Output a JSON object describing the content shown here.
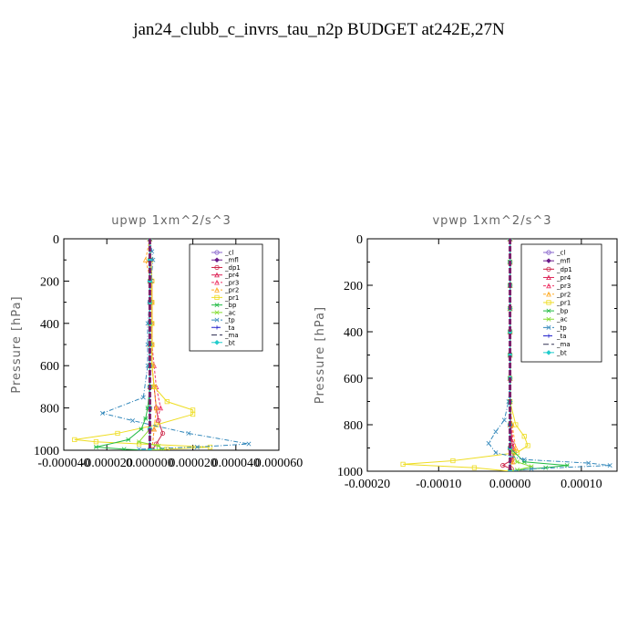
{
  "page": {
    "title": "jan24_clubb_c_invrs_tau_n2p  BUDGET at242E,27N"
  },
  "colors": {
    "_cl": "#8866cc",
    "_mfl": "#6a1a8a",
    "_dp1": "#cc2244",
    "_pr4": "#dd2255",
    "_pr3": "#ee3366",
    "_pr2": "#ffaa22",
    "_pr1": "#eedd22",
    "_bp": "#22bb44",
    "_ac": "#88dd33",
    "_tp": "#3388bb",
    "_ta": "#2222cc",
    "_ma": "#333355",
    "_bt": "#22cccc"
  },
  "chart_data": [
    {
      "type": "line",
      "title": "upwp   1xm^2/s^3",
      "xlabel": "",
      "ylabel": "Pressure [hPa]",
      "xlim": [
        -4e-05,
        6e-05
      ],
      "ylim": [
        1000,
        0
      ],
      "xticks": [
        "-0.000040",
        "-0.000020",
        "0.000000",
        "0.000020",
        "0.000040",
        "0.000060"
      ],
      "xtick_values": [
        -4e-05,
        -2e-05,
        0,
        2e-05,
        4e-05,
        6e-05
      ],
      "yticks": [
        "0",
        "200",
        "400",
        "600",
        "800",
        "1000"
      ],
      "ytick_values": [
        0,
        200,
        400,
        600,
        800,
        1000
      ],
      "legend_position": "top-right",
      "series": [
        {
          "name": "_cl",
          "x": [
            0,
            0,
            0,
            0,
            0,
            0,
            0,
            0,
            0,
            0,
            0
          ],
          "y": [
            0,
            100,
            200,
            300,
            400,
            500,
            600,
            700,
            800,
            900,
            1000
          ]
        },
        {
          "name": "_mfl",
          "x": [
            0,
            0,
            0,
            0,
            0,
            0,
            0,
            0,
            0,
            0,
            0
          ],
          "y": [
            0,
            100,
            200,
            300,
            400,
            500,
            600,
            700,
            800,
            900,
            1000
          ]
        },
        {
          "name": "_dp1",
          "x": [
            0,
            5e-07,
            1e-06,
            1e-06,
            1e-06,
            1e-06,
            1e-06,
            2e-06,
            3e-06,
            4e-06,
            6e-06,
            3e-06,
            1e-06
          ],
          "y": [
            0,
            100,
            200,
            300,
            400,
            500,
            600,
            700,
            800,
            860,
            920,
            970,
            1000
          ]
        },
        {
          "name": "_pr4",
          "x": [
            0,
            0,
            0,
            0,
            0,
            0,
            0,
            0,
            0,
            0,
            0
          ],
          "y": [
            0,
            100,
            200,
            300,
            400,
            500,
            600,
            700,
            800,
            900,
            1000
          ]
        },
        {
          "name": "_pr3",
          "x": [
            0,
            0,
            5e-07,
            1e-06,
            1e-06,
            1e-06,
            2e-06,
            3e-06,
            5e-06,
            2e-06,
            1e-06
          ],
          "y": [
            0,
            100,
            200,
            300,
            400,
            500,
            600,
            700,
            800,
            900,
            1000
          ]
        },
        {
          "name": "_pr2",
          "x": [
            0,
            -2e-06,
            5e-07,
            1e-06,
            1e-06,
            1e-06,
            1e-06,
            2e-06,
            3e-06,
            2e-06,
            1e-06
          ],
          "y": [
            0,
            100,
            200,
            300,
            400,
            500,
            600,
            700,
            800,
            900,
            1000
          ]
        },
        {
          "name": "_pr1",
          "x": [
            0,
            5e-07,
            1e-06,
            1e-06,
            1e-06,
            1e-06,
            1e-06,
            2e-06,
            8e-06,
            2e-05,
            2e-05,
            3e-06,
            -1.5e-05,
            -3.5e-05,
            -2.5e-05,
            -5e-06,
            2.8e-05,
            8e-06,
            0
          ],
          "y": [
            0,
            100,
            200,
            300,
            400,
            500,
            600,
            700,
            770,
            810,
            830,
            880,
            920,
            950,
            960,
            970,
            985,
            995,
            1000
          ]
        },
        {
          "name": "_bp",
          "x": [
            0,
            0,
            0,
            0,
            0,
            0,
            0,
            0,
            -1e-06,
            -2e-06,
            -4e-06,
            -1e-05,
            -2.5e-05,
            -1.2e-05,
            0
          ],
          "y": [
            0,
            100,
            200,
            300,
            400,
            500,
            600,
            700,
            800,
            850,
            900,
            950,
            985,
            995,
            1000
          ]
        },
        {
          "name": "_ac",
          "x": [
            0,
            0,
            0,
            0,
            0,
            0,
            0,
            0,
            0,
            0,
            -5e-06,
            4e-06,
            6e-06,
            0
          ],
          "y": [
            0,
            100,
            200,
            300,
            400,
            500,
            600,
            700,
            800,
            900,
            960,
            980,
            995,
            1000
          ]
        },
        {
          "name": "_tp",
          "x": [
            0,
            1e-06,
            1.5e-06,
            5e-07,
            0,
            -1e-06,
            -1e-06,
            -1e-06,
            -3e-06,
            -2.2e-05,
            -8e-06,
            1.8e-05,
            4.6e-05,
            2.2e-05,
            -5e-06,
            0
          ],
          "y": [
            0,
            60,
            100,
            200,
            300,
            400,
            500,
            600,
            750,
            825,
            860,
            920,
            970,
            985,
            995,
            1000
          ]
        },
        {
          "name": "_ta",
          "x": [
            0,
            0,
            0,
            0,
            0,
            0,
            0,
            0,
            0,
            0,
            0
          ],
          "y": [
            0,
            100,
            200,
            300,
            400,
            500,
            600,
            700,
            800,
            900,
            1000
          ]
        },
        {
          "name": "_ma",
          "x": [
            0,
            0,
            0,
            0,
            0,
            0,
            0,
            0,
            0,
            0,
            0
          ],
          "y": [
            0,
            100,
            200,
            300,
            400,
            500,
            600,
            700,
            800,
            900,
            1000
          ]
        },
        {
          "name": "_bt",
          "x": [
            0,
            0,
            0,
            0,
            0,
            0,
            0,
            0,
            0,
            0,
            0
          ],
          "y": [
            0,
            100,
            200,
            300,
            400,
            500,
            600,
            700,
            800,
            900,
            1000
          ]
        }
      ]
    },
    {
      "type": "line",
      "title": "vpwp   1xm^2/s^3",
      "xlabel": "",
      "ylabel": "Pressure [hPa]",
      "xlim": [
        -0.0002,
        0.00015
      ],
      "ylim": [
        1000,
        0
      ],
      "xticks": [
        "-0.00020",
        "-0.00010",
        "0.00000",
        "0.00010"
      ],
      "xtick_values": [
        -0.0002,
        -0.0001,
        0,
        0.0001
      ],
      "yticks": [
        "0",
        "200",
        "400",
        "600",
        "800",
        "1000"
      ],
      "ytick_values": [
        0,
        200,
        400,
        600,
        800,
        1000
      ],
      "legend_position": "top-right",
      "series": [
        {
          "name": "_cl",
          "x": [
            0,
            0,
            0,
            0,
            0,
            0,
            0,
            0,
            0,
            0,
            0
          ],
          "y": [
            0,
            100,
            200,
            300,
            400,
            500,
            600,
            700,
            800,
            900,
            1000
          ]
        },
        {
          "name": "_mfl",
          "x": [
            0,
            0,
            0,
            0,
            0,
            0,
            0,
            0,
            0,
            0,
            0
          ],
          "y": [
            0,
            100,
            200,
            300,
            400,
            500,
            600,
            700,
            800,
            900,
            1000
          ]
        },
        {
          "name": "_dp1",
          "x": [
            0,
            0,
            0,
            0,
            0,
            0,
            0,
            0,
            1e-06,
            3e-06,
            6e-06,
            3e-06,
            -1e-05,
            2e-06,
            0
          ],
          "y": [
            0,
            100,
            200,
            300,
            400,
            500,
            600,
            700,
            800,
            880,
            920,
            950,
            975,
            990,
            1000
          ]
        },
        {
          "name": "_pr4",
          "x": [
            0,
            0,
            0,
            0,
            0,
            0,
            0,
            0,
            0,
            0,
            0
          ],
          "y": [
            0,
            100,
            200,
            300,
            400,
            500,
            600,
            700,
            800,
            900,
            1000
          ]
        },
        {
          "name": "_pr3",
          "x": [
            0,
            0,
            0,
            0,
            0,
            0,
            0,
            0,
            2e-06,
            5e-06,
            2e-06,
            0
          ],
          "y": [
            0,
            100,
            200,
            300,
            400,
            500,
            600,
            700,
            800,
            900,
            960,
            1000
          ]
        },
        {
          "name": "_pr2",
          "x": [
            0,
            0,
            0,
            0,
            0,
            0,
            0,
            0,
            3e-06,
            8e-06,
            4e-06,
            0
          ],
          "y": [
            0,
            100,
            200,
            300,
            400,
            500,
            600,
            700,
            800,
            900,
            960,
            1000
          ]
        },
        {
          "name": "_pr1",
          "x": [
            0,
            0,
            0,
            0,
            0,
            0,
            0,
            0,
            8e-06,
            2e-05,
            2.5e-05,
            1e-05,
            -8e-05,
            -0.00015,
            -5e-05,
            0
          ],
          "y": [
            0,
            100,
            200,
            300,
            400,
            500,
            600,
            700,
            800,
            850,
            890,
            920,
            955,
            970,
            985,
            1000
          ]
        },
        {
          "name": "_bp",
          "x": [
            0,
            0,
            0,
            0,
            0,
            0,
            0,
            0,
            0,
            0,
            2e-05,
            8e-05,
            5e-05,
            1e-05,
            0
          ],
          "y": [
            0,
            100,
            200,
            300,
            400,
            500,
            600,
            700,
            800,
            900,
            960,
            975,
            985,
            995,
            1000
          ]
        },
        {
          "name": "_ac",
          "x": [
            0,
            0,
            0,
            0,
            0,
            0,
            0,
            0,
            0,
            0,
            1e-05,
            3e-05,
            1e-05,
            0
          ],
          "y": [
            0,
            100,
            200,
            300,
            400,
            500,
            600,
            700,
            800,
            900,
            960,
            980,
            995,
            1000
          ]
        },
        {
          "name": "_tp",
          "x": [
            0,
            0,
            0,
            0,
            0,
            0,
            0,
            -2e-06,
            -8e-06,
            -2e-05,
            -3e-05,
            -2e-05,
            2e-05,
            0.00011,
            0.00014,
            3e-05,
            0
          ],
          "y": [
            0,
            100,
            200,
            300,
            400,
            500,
            600,
            700,
            780,
            830,
            880,
            920,
            950,
            965,
            975,
            990,
            1000
          ]
        },
        {
          "name": "_ta",
          "x": [
            0,
            0,
            0,
            0,
            0,
            0,
            0,
            0,
            0,
            0,
            0
          ],
          "y": [
            0,
            100,
            200,
            300,
            400,
            500,
            600,
            700,
            800,
            900,
            1000
          ]
        },
        {
          "name": "_ma",
          "x": [
            0,
            0,
            0,
            0,
            0,
            0,
            0,
            0,
            0,
            0,
            0
          ],
          "y": [
            0,
            100,
            200,
            300,
            400,
            500,
            600,
            700,
            800,
            900,
            1000
          ]
        },
        {
          "name": "_bt",
          "x": [
            0,
            0,
            0,
            0,
            0,
            0,
            0,
            0,
            0,
            0,
            0
          ],
          "y": [
            0,
            100,
            200,
            300,
            400,
            500,
            600,
            700,
            800,
            900,
            1000
          ]
        }
      ]
    }
  ]
}
